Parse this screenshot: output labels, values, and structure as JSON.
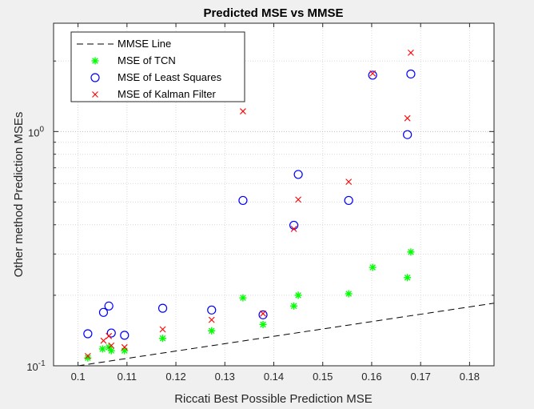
{
  "chart_data": {
    "type": "scatter",
    "title": "Predicted MSE vs MMSE",
    "xlabel": "Riccati Best Possible Prediction MSE",
    "ylabel": "Other method Prediction MSEs",
    "xlim": [
      0.095,
      0.185
    ],
    "ylim": [
      0.1,
      2.9
    ],
    "yscale": "log",
    "grid": true,
    "minor_grid": true,
    "legend_position": "top-left",
    "x_ticks": [
      0.1,
      0.11,
      0.12,
      0.13,
      0.14,
      0.15,
      0.16,
      0.17,
      0.18
    ],
    "x_tick_labels": [
      "0.1",
      "0.11",
      "0.12",
      "0.13",
      "0.14",
      "0.15",
      "0.16",
      "0.17",
      "0.18"
    ],
    "y_ticks": [
      {
        "value": 0.1,
        "base": "10",
        "exp": "-1"
      },
      {
        "value": 1,
        "base": "10",
        "exp": "0"
      }
    ],
    "series": [
      {
        "name": "MMSE Line",
        "kind": "line",
        "color": "#000000",
        "dash": true,
        "x": [
          0.1,
          0.185
        ],
        "y": [
          0.1,
          0.185
        ]
      },
      {
        "name": "MSE of TCN",
        "kind": "asterisk",
        "color": "#00ff00",
        "x": [
          0.102,
          0.105,
          0.1063,
          0.1068,
          0.1095,
          0.1173,
          0.1273,
          0.1337,
          0.1378,
          0.1441,
          0.145,
          0.1553,
          0.1602,
          0.1673,
          0.168
        ],
        "y": [
          0.108,
          0.118,
          0.12,
          0.116,
          0.116,
          0.131,
          0.141,
          0.195,
          0.15,
          0.18,
          0.2,
          0.203,
          0.263,
          0.238,
          0.306
        ]
      },
      {
        "name": "MSE of Least Squares",
        "kind": "circle",
        "color": "#0000ff",
        "x": [
          0.102,
          0.1052,
          0.1063,
          0.1068,
          0.1095,
          0.1173,
          0.1273,
          0.1337,
          0.1378,
          0.1441,
          0.145,
          0.1553,
          0.1602,
          0.1673,
          0.168
        ],
        "y": [
          0.137,
          0.169,
          0.18,
          0.138,
          0.135,
          0.176,
          0.173,
          0.508,
          0.165,
          0.398,
          0.656,
          0.508,
          1.74,
          0.97,
          1.76
        ]
      },
      {
        "name": "MSE of Kalman Filter",
        "kind": "x",
        "color": "#ff0000",
        "x": [
          0.102,
          0.1052,
          0.1063,
          0.1068,
          0.1095,
          0.1173,
          0.1273,
          0.1337,
          0.1378,
          0.1441,
          0.145,
          0.1553,
          0.1602,
          0.1673,
          0.168
        ],
        "y": [
          0.11,
          0.128,
          0.134,
          0.122,
          0.12,
          0.143,
          0.157,
          1.22,
          0.167,
          0.384,
          0.512,
          0.61,
          1.77,
          1.14,
          2.17
        ]
      }
    ]
  }
}
